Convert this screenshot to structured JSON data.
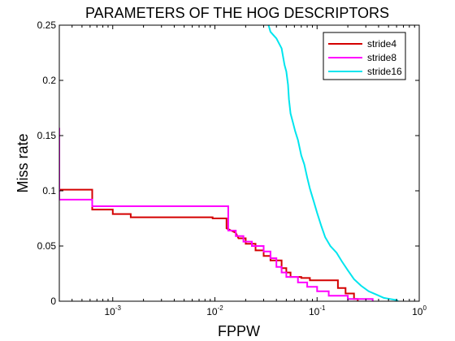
{
  "chart_data": {
    "type": "line",
    "title": "PARAMETERS OF THE HOG DESCRIPTORS",
    "xlabel": "FPPW",
    "ylabel": "Miss rate",
    "xscale": "log",
    "xlim": [
      0.0003,
      1
    ],
    "ylim": [
      0,
      0.25
    ],
    "x_ticks": [
      {
        "value": 0.001,
        "base": "10",
        "exp": "-3"
      },
      {
        "value": 0.01,
        "base": "10",
        "exp": "-2"
      },
      {
        "value": 0.1,
        "base": "10",
        "exp": "-1"
      },
      {
        "value": 1,
        "base": "10",
        "exp": "0"
      }
    ],
    "y_ticks": [
      {
        "value": 0,
        "label": "0"
      },
      {
        "value": 0.05,
        "label": "0.05"
      },
      {
        "value": 0.1,
        "label": "0.1"
      },
      {
        "value": 0.15,
        "label": "0.15"
      },
      {
        "value": 0.2,
        "label": "0.2"
      },
      {
        "value": 0.25,
        "label": "0.25"
      }
    ],
    "grid": false,
    "legend_position": "top-right",
    "series": [
      {
        "name": "stride4",
        "color": "#d40000",
        "points": [
          [
            0.0003,
            0.15
          ],
          [
            0.0003,
            0.101
          ],
          [
            0.00063,
            0.101
          ],
          [
            0.00063,
            0.083
          ],
          [
            0.001,
            0.083
          ],
          [
            0.001,
            0.079
          ],
          [
            0.0015,
            0.079
          ],
          [
            0.0015,
            0.076
          ],
          [
            0.0095,
            0.076
          ],
          [
            0.0095,
            0.075
          ],
          [
            0.013,
            0.075
          ],
          [
            0.013,
            0.066
          ],
          [
            0.016,
            0.062
          ],
          [
            0.017,
            0.057
          ],
          [
            0.02,
            0.057
          ],
          [
            0.02,
            0.052
          ],
          [
            0.025,
            0.052
          ],
          [
            0.025,
            0.046
          ],
          [
            0.03,
            0.046
          ],
          [
            0.03,
            0.041
          ],
          [
            0.035,
            0.041
          ],
          [
            0.035,
            0.037
          ],
          [
            0.045,
            0.037
          ],
          [
            0.045,
            0.03
          ],
          [
            0.05,
            0.03
          ],
          [
            0.05,
            0.026
          ],
          [
            0.055,
            0.026
          ],
          [
            0.055,
            0.022
          ],
          [
            0.07,
            0.022
          ],
          [
            0.07,
            0.021
          ],
          [
            0.085,
            0.021
          ],
          [
            0.085,
            0.019
          ],
          [
            0.16,
            0.019
          ],
          [
            0.16,
            0.012
          ],
          [
            0.19,
            0.012
          ],
          [
            0.19,
            0.007
          ],
          [
            0.23,
            0.007
          ],
          [
            0.23,
            0.002
          ],
          [
            0.25,
            0.002
          ],
          [
            0.25,
            0
          ]
        ]
      },
      {
        "name": "stride8",
        "color": "#ff00ff",
        "points": [
          [
            0.0003,
            0.157
          ],
          [
            0.0003,
            0.092
          ],
          [
            0.00063,
            0.092
          ],
          [
            0.00063,
            0.086
          ],
          [
            0.0135,
            0.086
          ],
          [
            0.0135,
            0.064
          ],
          [
            0.016,
            0.064
          ],
          [
            0.016,
            0.059
          ],
          [
            0.019,
            0.059
          ],
          [
            0.019,
            0.054
          ],
          [
            0.023,
            0.054
          ],
          [
            0.023,
            0.05
          ],
          [
            0.03,
            0.05
          ],
          [
            0.03,
            0.045
          ],
          [
            0.035,
            0.045
          ],
          [
            0.035,
            0.039
          ],
          [
            0.04,
            0.039
          ],
          [
            0.04,
            0.031
          ],
          [
            0.045,
            0.031
          ],
          [
            0.045,
            0.026
          ],
          [
            0.05,
            0.026
          ],
          [
            0.05,
            0.022
          ],
          [
            0.065,
            0.022
          ],
          [
            0.065,
            0.017
          ],
          [
            0.08,
            0.017
          ],
          [
            0.08,
            0.013
          ],
          [
            0.1,
            0.013
          ],
          [
            0.1,
            0.009
          ],
          [
            0.13,
            0.009
          ],
          [
            0.13,
            0.005
          ],
          [
            0.2,
            0.005
          ],
          [
            0.2,
            0.002
          ],
          [
            0.35,
            0.002
          ],
          [
            0.35,
            0
          ]
        ]
      },
      {
        "name": "stride16",
        "color": "#00e5ee",
        "points": [
          [
            0.0335,
            0.25
          ],
          [
            0.035,
            0.244
          ],
          [
            0.04,
            0.238
          ],
          [
            0.045,
            0.229
          ],
          [
            0.048,
            0.214
          ],
          [
            0.05,
            0.208
          ],
          [
            0.052,
            0.196
          ],
          [
            0.053,
            0.183
          ],
          [
            0.055,
            0.17
          ],
          [
            0.058,
            0.162
          ],
          [
            0.061,
            0.154
          ],
          [
            0.065,
            0.146
          ],
          [
            0.07,
            0.132
          ],
          [
            0.075,
            0.124
          ],
          [
            0.08,
            0.112
          ],
          [
            0.085,
            0.102
          ],
          [
            0.093,
            0.09
          ],
          [
            0.1,
            0.08
          ],
          [
            0.11,
            0.068
          ],
          [
            0.12,
            0.058
          ],
          [
            0.135,
            0.05
          ],
          [
            0.155,
            0.044
          ],
          [
            0.175,
            0.036
          ],
          [
            0.2,
            0.028
          ],
          [
            0.23,
            0.02
          ],
          [
            0.27,
            0.014
          ],
          [
            0.32,
            0.009
          ],
          [
            0.38,
            0.006
          ],
          [
            0.45,
            0.003
          ],
          [
            0.52,
            0.002
          ],
          [
            0.6,
            0.001
          ],
          [
            0.62,
            0
          ]
        ]
      }
    ]
  }
}
